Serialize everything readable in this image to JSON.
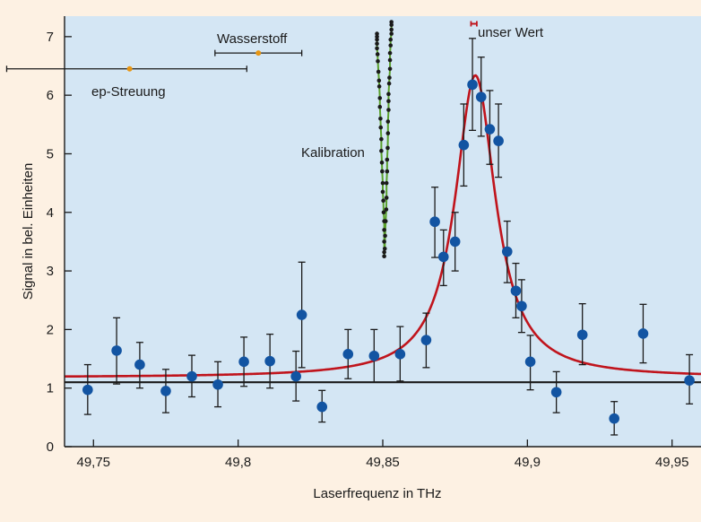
{
  "chart_data": {
    "type": "scatter",
    "xlabel": "Laserfrequenz in THz",
    "ylabel": "Signal in bel. Einheiten",
    "xlim": [
      49.74,
      49.96
    ],
    "ylim": [
      0,
      7.35
    ],
    "x_ticks": [
      49.75,
      49.8,
      49.85,
      49.9,
      49.95
    ],
    "x_tick_labels": [
      "49,75",
      "49,8",
      "49,85",
      "49,9",
      "49,95"
    ],
    "y_ticks": [
      0,
      1,
      2,
      3,
      4,
      5,
      6,
      7
    ],
    "y_tick_labels": [
      "0",
      "1",
      "2",
      "3",
      "4",
      "5",
      "6",
      "7"
    ],
    "grid": false,
    "background_color": "#d4e6f4",
    "frame_color": "#fdf1e3",
    "points": [
      {
        "x": 49.748,
        "y": 0.97,
        "lo": 0.55,
        "hi": 1.4
      },
      {
        "x": 49.758,
        "y": 1.64,
        "lo": 1.07,
        "hi": 2.2
      },
      {
        "x": 49.766,
        "y": 1.4,
        "lo": 1.0,
        "hi": 1.78
      },
      {
        "x": 49.775,
        "y": 0.95,
        "lo": 0.58,
        "hi": 1.32
      },
      {
        "x": 49.784,
        "y": 1.2,
        "lo": 0.85,
        "hi": 1.56
      },
      {
        "x": 49.793,
        "y": 1.06,
        "lo": 0.68,
        "hi": 1.45
      },
      {
        "x": 49.802,
        "y": 1.45,
        "lo": 1.03,
        "hi": 1.87
      },
      {
        "x": 49.811,
        "y": 1.46,
        "lo": 1.0,
        "hi": 1.92
      },
      {
        "x": 49.82,
        "y": 1.2,
        "lo": 0.78,
        "hi": 1.63
      },
      {
        "x": 49.822,
        "y": 2.25,
        "lo": 1.35,
        "hi": 3.15
      },
      {
        "x": 49.829,
        "y": 0.68,
        "lo": 0.42,
        "hi": 0.96
      },
      {
        "x": 49.838,
        "y": 1.58,
        "lo": 1.16,
        "hi": 2.0
      },
      {
        "x": 49.847,
        "y": 1.55,
        "lo": 1.1,
        "hi": 2.0
      },
      {
        "x": 49.856,
        "y": 1.58,
        "lo": 1.12,
        "hi": 2.05
      },
      {
        "x": 49.865,
        "y": 1.82,
        "lo": 1.35,
        "hi": 2.28
      },
      {
        "x": 49.868,
        "y": 3.84,
        "lo": 3.23,
        "hi": 4.43
      },
      {
        "x": 49.871,
        "y": 3.24,
        "lo": 2.75,
        "hi": 3.7
      },
      {
        "x": 49.875,
        "y": 3.5,
        "lo": 3.0,
        "hi": 4.0
      },
      {
        "x": 49.878,
        "y": 5.15,
        "lo": 4.45,
        "hi": 5.85
      },
      {
        "x": 49.881,
        "y": 6.18,
        "lo": 5.4,
        "hi": 6.97
      },
      {
        "x": 49.884,
        "y": 5.97,
        "lo": 5.3,
        "hi": 6.65
      },
      {
        "x": 49.887,
        "y": 5.42,
        "lo": 4.82,
        "hi": 6.08
      },
      {
        "x": 49.89,
        "y": 5.22,
        "lo": 4.6,
        "hi": 5.85
      },
      {
        "x": 49.893,
        "y": 3.33,
        "lo": 2.8,
        "hi": 3.85
      },
      {
        "x": 49.896,
        "y": 2.66,
        "lo": 2.2,
        "hi": 3.13
      },
      {
        "x": 49.898,
        "y": 2.4,
        "lo": 1.95,
        "hi": 2.85
      },
      {
        "x": 49.901,
        "y": 1.45,
        "lo": 0.97,
        "hi": 1.9
      },
      {
        "x": 49.91,
        "y": 0.93,
        "lo": 0.58,
        "hi": 1.28
      },
      {
        "x": 49.919,
        "y": 1.91,
        "lo": 1.4,
        "hi": 2.44
      },
      {
        "x": 49.93,
        "y": 0.48,
        "lo": 0.2,
        "hi": 0.77
      },
      {
        "x": 49.94,
        "y": 1.93,
        "lo": 1.43,
        "hi": 2.43
      },
      {
        "x": 49.956,
        "y": 1.13,
        "lo": 0.73,
        "hi": 1.57
      }
    ],
    "fit": {
      "type": "lorentzian",
      "center": 49.882,
      "amplitude": 5.16,
      "half_width": 0.0085,
      "offset": 1.18,
      "color": "#c0141c"
    },
    "baseline": {
      "y": 1.1,
      "color": "#1a1a1a"
    },
    "point_color": "#1254a2",
    "annotations": {
      "ep": {
        "label": "ep-Streuung",
        "x": 49.7625,
        "y": 6.45,
        "xmin": 49.72,
        "xmax": 49.803,
        "color": "#e89612"
      },
      "wasserstoff": {
        "label": "Wasserstoff",
        "x": 49.807,
        "y": 6.72,
        "xmin": 49.792,
        "xmax": 49.822,
        "color": "#e89612"
      },
      "unser_wert": {
        "label": "unser Wert",
        "x": 49.8815,
        "y": 7.22,
        "xmin": 49.8805,
        "xmax": 49.8825,
        "color": "#c0141c"
      },
      "kalibration": {
        "label": "Kalibration",
        "color": "#5aa02c",
        "points": [
          [
            49.848,
            7.05
          ],
          [
            49.848,
            7.0
          ],
          [
            49.848,
            6.95
          ],
          [
            49.848,
            6.88
          ],
          [
            49.848,
            6.8
          ],
          [
            49.8482,
            6.7
          ],
          [
            49.8483,
            6.58
          ],
          [
            49.8485,
            6.4
          ],
          [
            49.8487,
            6.25
          ],
          [
            49.8488,
            6.15
          ],
          [
            49.849,
            5.95
          ],
          [
            49.849,
            5.8
          ],
          [
            49.8492,
            5.6
          ],
          [
            49.8493,
            5.45
          ],
          [
            49.8495,
            5.25
          ],
          [
            49.8495,
            5.05
          ],
          [
            49.8497,
            4.85
          ],
          [
            49.8498,
            4.7
          ],
          [
            49.85,
            4.5
          ],
          [
            49.85,
            4.35
          ],
          [
            49.8502,
            4.2
          ],
          [
            49.8503,
            4.0
          ],
          [
            49.8505,
            3.85
          ],
          [
            49.8505,
            3.7
          ],
          [
            49.8505,
            3.5
          ],
          [
            49.8505,
            3.32
          ],
          [
            49.8505,
            3.25
          ],
          [
            49.8507,
            3.38
          ],
          [
            49.8508,
            3.6
          ],
          [
            49.851,
            3.85
          ],
          [
            49.8512,
            4.05
          ],
          [
            49.8513,
            4.25
          ],
          [
            49.8513,
            4.5
          ],
          [
            49.8515,
            4.7
          ],
          [
            49.8515,
            4.9
          ],
          [
            49.8517,
            5.1
          ],
          [
            49.8518,
            5.35
          ],
          [
            49.8518,
            5.55
          ],
          [
            49.852,
            5.75
          ],
          [
            49.852,
            5.9
          ],
          [
            49.852,
            6.02
          ],
          [
            49.8522,
            6.2
          ],
          [
            49.8523,
            6.3
          ],
          [
            49.8525,
            6.45
          ],
          [
            49.8525,
            6.6
          ],
          [
            49.8525,
            6.72
          ],
          [
            49.8527,
            6.85
          ],
          [
            49.8527,
            6.95
          ],
          [
            49.853,
            7.05
          ],
          [
            49.853,
            7.12
          ],
          [
            49.853,
            7.2
          ],
          [
            49.853,
            7.25
          ]
        ]
      }
    }
  }
}
